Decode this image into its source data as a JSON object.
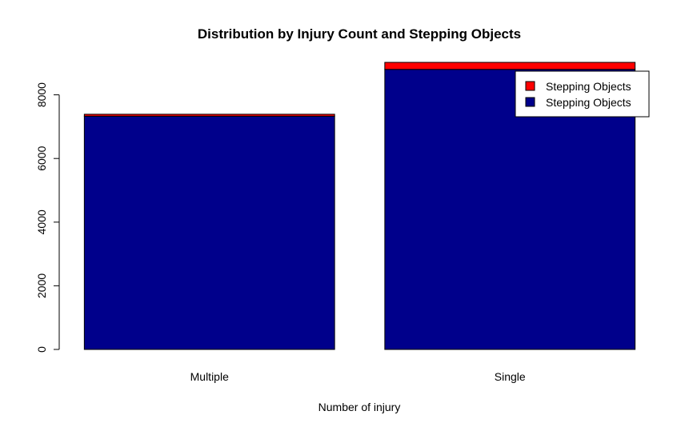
{
  "chart_data": {
    "type": "bar",
    "stacked": true,
    "title": "Distribution by Injury Count and Stepping Objects",
    "xlabel": "Number of injury",
    "ylabel": "",
    "categories": [
      "Multiple",
      "Single"
    ],
    "series": [
      {
        "name": "Stepping Objects",
        "color": "#00008B",
        "values": [
          7330,
          8800
        ]
      },
      {
        "name": "Stepping Objects",
        "color": "#FF0000",
        "values": [
          60,
          220
        ]
      }
    ],
    "yticks": [
      0,
      2000,
      4000,
      6000,
      8000
    ],
    "ylim": [
      0,
      9020
    ],
    "legend": {
      "position": "top-right",
      "entries": [
        {
          "label": "Stepping Objects",
          "color": "#FF0000"
        },
        {
          "label": "Stepping Objects",
          "color": "#00008B"
        }
      ]
    },
    "grid": false
  }
}
